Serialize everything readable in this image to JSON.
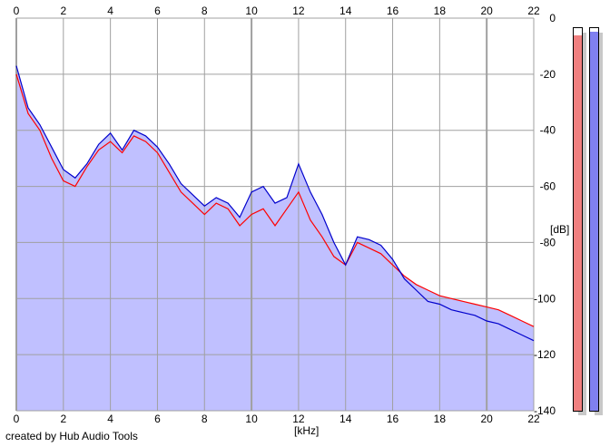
{
  "footer": {
    "credit": "created by Hub Audio Tools"
  },
  "colors": {
    "background": "#ffffff",
    "plot_background": "#ffffff",
    "fill": "#c0c0ff",
    "channel_left": "#ff0000",
    "channel_right": "#0000cc",
    "grid": "#a0a0a0",
    "meter_left": "#f08080",
    "meter_right": "#8080f0"
  },
  "meters": {
    "left_level": 0.98,
    "right_level": 0.99
  },
  "chart_data": {
    "type": "line",
    "xlabel": "[kHz]",
    "ylabel": "[dB]",
    "xlim": [
      0,
      22
    ],
    "ylim": [
      -140,
      0
    ],
    "x_ticks": [
      "0",
      "2",
      "4",
      "6",
      "8",
      "10",
      "12",
      "14",
      "16",
      "18",
      "20",
      "22"
    ],
    "y_ticks": [
      "0",
      "-20",
      "-40",
      "-60",
      "-80",
      "-100",
      "-120",
      "-140"
    ],
    "grid": true,
    "filled_area": true,
    "x": [
      0,
      0.5,
      1,
      1.5,
      2,
      2.5,
      3,
      3.5,
      4,
      4.5,
      5,
      5.5,
      6,
      6.5,
      7,
      7.5,
      8,
      8.5,
      9,
      9.5,
      10,
      10.5,
      11,
      11.5,
      12,
      12.5,
      13,
      13.5,
      14,
      14.5,
      15,
      15.5,
      16,
      16.5,
      17,
      17.5,
      18,
      18.5,
      19,
      19.5,
      20,
      20.5,
      21,
      21.5,
      22
    ],
    "series": [
      {
        "values": [
          -20,
          -34,
          -40,
          -50,
          -58,
          -60,
          -53,
          -47,
          -44,
          -48,
          -42,
          -44,
          -48,
          -55,
          -62,
          -66,
          -70,
          -66,
          -68,
          -74,
          -70,
          -68,
          -74,
          -68,
          -62,
          -72,
          -78,
          -85,
          -88,
          -80,
          -82,
          -84,
          -88,
          -92,
          -95,
          -97,
          -99,
          -100,
          -101,
          -102,
          -103,
          -104,
          -106,
          -108,
          -110
        ]
      },
      {
        "values": [
          -17,
          -32,
          -38,
          -46,
          -54,
          -57,
          -52,
          -45,
          -41,
          -47,
          -40,
          -42,
          -46,
          -52,
          -59,
          -63,
          -67,
          -64,
          -66,
          -71,
          -62,
          -60,
          -66,
          -64,
          -52,
          -62,
          -70,
          -80,
          -88,
          -78,
          -79,
          -81,
          -86,
          -93,
          -97,
          -101,
          -102,
          -104,
          -105,
          -106,
          -108,
          -109,
          -111,
          -113,
          -115
        ]
      }
    ]
  }
}
